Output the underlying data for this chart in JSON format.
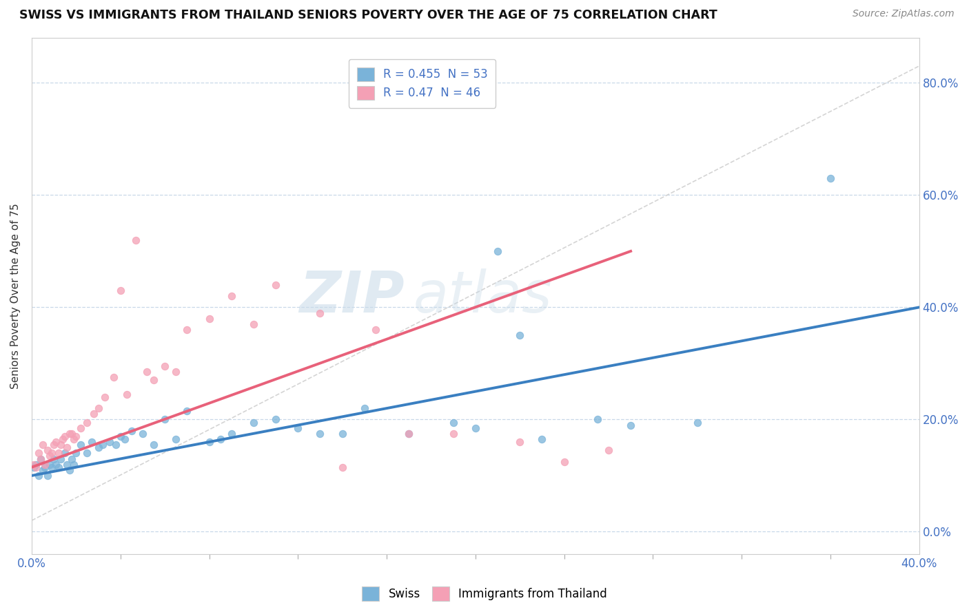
{
  "title": "SWISS VS IMMIGRANTS FROM THAILAND SENIORS POVERTY OVER THE AGE OF 75 CORRELATION CHART",
  "source": "Source: ZipAtlas.com",
  "ylabel": "Seniors Poverty Over the Age of 75",
  "xlim": [
    0.0,
    0.4
  ],
  "ylim": [
    -0.04,
    0.88
  ],
  "yticks": [
    0.0,
    0.2,
    0.4,
    0.6,
    0.8
  ],
  "ytick_labels": [
    "0.0%",
    "20.0%",
    "40.0%",
    "60.0%",
    "80.0%"
  ],
  "swiss_color": "#7ab3d9",
  "thailand_color": "#f4a0b5",
  "swiss_line_color": "#3a7fc1",
  "thailand_line_color": "#e8617a",
  "diag_color": "#d0d0d0",
  "grid_color": "#c8d8e8",
  "swiss_R": 0.455,
  "swiss_N": 53,
  "thailand_R": 0.47,
  "thailand_N": 46,
  "watermark_zip": "ZIP",
  "watermark_atlas": "atlas",
  "swiss_x": [
    0.001,
    0.002,
    0.003,
    0.004,
    0.005,
    0.006,
    0.007,
    0.008,
    0.009,
    0.01,
    0.011,
    0.012,
    0.013,
    0.015,
    0.016,
    0.017,
    0.018,
    0.019,
    0.02,
    0.022,
    0.025,
    0.027,
    0.03,
    0.032,
    0.035,
    0.038,
    0.04,
    0.042,
    0.045,
    0.05,
    0.055,
    0.06,
    0.065,
    0.07,
    0.08,
    0.085,
    0.09,
    0.1,
    0.11,
    0.12,
    0.13,
    0.14,
    0.15,
    0.17,
    0.19,
    0.2,
    0.21,
    0.22,
    0.23,
    0.255,
    0.27,
    0.3,
    0.36
  ],
  "swiss_y": [
    0.115,
    0.12,
    0.1,
    0.13,
    0.11,
    0.115,
    0.1,
    0.12,
    0.115,
    0.13,
    0.12,
    0.115,
    0.13,
    0.14,
    0.12,
    0.11,
    0.13,
    0.12,
    0.14,
    0.155,
    0.14,
    0.16,
    0.15,
    0.155,
    0.16,
    0.155,
    0.17,
    0.165,
    0.18,
    0.175,
    0.155,
    0.2,
    0.165,
    0.215,
    0.16,
    0.165,
    0.175,
    0.195,
    0.2,
    0.185,
    0.175,
    0.175,
    0.22,
    0.175,
    0.195,
    0.185,
    0.5,
    0.35,
    0.165,
    0.2,
    0.19,
    0.195,
    0.63
  ],
  "thailand_x": [
    0.001,
    0.002,
    0.003,
    0.004,
    0.005,
    0.006,
    0.007,
    0.008,
    0.009,
    0.01,
    0.011,
    0.012,
    0.013,
    0.014,
    0.015,
    0.016,
    0.017,
    0.018,
    0.019,
    0.02,
    0.022,
    0.025,
    0.028,
    0.03,
    0.033,
    0.037,
    0.04,
    0.043,
    0.047,
    0.052,
    0.055,
    0.06,
    0.065,
    0.07,
    0.08,
    0.09,
    0.1,
    0.11,
    0.13,
    0.14,
    0.155,
    0.17,
    0.19,
    0.22,
    0.24,
    0.26
  ],
  "thailand_y": [
    0.12,
    0.115,
    0.14,
    0.13,
    0.155,
    0.12,
    0.145,
    0.135,
    0.14,
    0.155,
    0.16,
    0.14,
    0.155,
    0.165,
    0.17,
    0.15,
    0.175,
    0.175,
    0.165,
    0.17,
    0.185,
    0.195,
    0.21,
    0.22,
    0.24,
    0.275,
    0.43,
    0.245,
    0.52,
    0.285,
    0.27,
    0.295,
    0.285,
    0.36,
    0.38,
    0.42,
    0.37,
    0.44,
    0.39,
    0.115,
    0.36,
    0.175,
    0.175,
    0.16,
    0.125,
    0.145
  ]
}
